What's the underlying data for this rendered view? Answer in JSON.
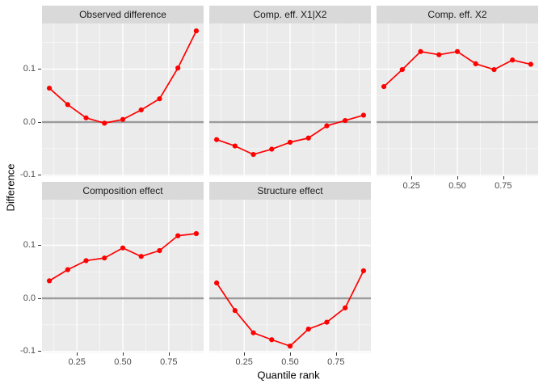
{
  "figure": {
    "kind": "ggplot-faceted-line-chart"
  },
  "colors": {
    "background": "#FFFFFF",
    "panel_bg": "#EBEBEB",
    "strip_bg": "#D9D9D9",
    "grid": "#FFFFFF",
    "reference_line": "#9B9B9B",
    "series": "#FF0000",
    "tick_text": "#4D4D4D",
    "axis_title_text": "#000000",
    "strip_text": "#1A1A1A"
  },
  "chart_data": {
    "type": "line",
    "title": "",
    "xlabel": "Quantile rank",
    "ylabel": "Difference",
    "legend": "none",
    "grid": "on",
    "x": [
      0.1,
      0.2,
      0.3,
      0.4,
      0.5,
      0.6,
      0.7,
      0.8,
      0.9
    ],
    "xlim": [
      0.06,
      0.94
    ],
    "ylim": [
      -0.102,
      0.186
    ],
    "x_ticks": {
      "values": [
        0.25,
        0.5,
        0.75
      ],
      "labels": [
        "0.25",
        "0.50",
        "0.75"
      ]
    },
    "y_ticks": {
      "values": [
        -0.1,
        0.0,
        0.1
      ],
      "labels": [
        "-0.1",
        "0.0",
        "0.1"
      ]
    },
    "x_minor": [
      0.125,
      0.375,
      0.625,
      0.875
    ],
    "y_minor": [
      -0.05,
      0.05,
      0.15
    ],
    "reference_line_y": 0,
    "marker": "point",
    "facets": [
      {
        "title": "Observed difference",
        "values": [
          0.064,
          0.033,
          0.008,
          -0.002,
          0.005,
          0.023,
          0.044,
          0.102,
          0.172
        ]
      },
      {
        "title": "Comp. eff. X1|X2",
        "values": [
          -0.033,
          -0.045,
          -0.061,
          -0.051,
          -0.038,
          -0.03,
          -0.007,
          0.003,
          0.013
        ]
      },
      {
        "title": "Comp. eff. X2",
        "values": [
          0.067,
          0.099,
          0.133,
          0.127,
          0.133,
          0.11,
          0.099,
          0.117,
          0.109
        ]
      },
      {
        "title": "Composition effect",
        "values": [
          0.033,
          0.054,
          0.071,
          0.076,
          0.095,
          0.079,
          0.09,
          0.118,
          0.122
        ]
      },
      {
        "title": "Structure effect",
        "values": [
          0.029,
          -0.023,
          -0.065,
          -0.078,
          -0.09,
          -0.058,
          -0.045,
          -0.018,
          0.052
        ]
      }
    ]
  }
}
